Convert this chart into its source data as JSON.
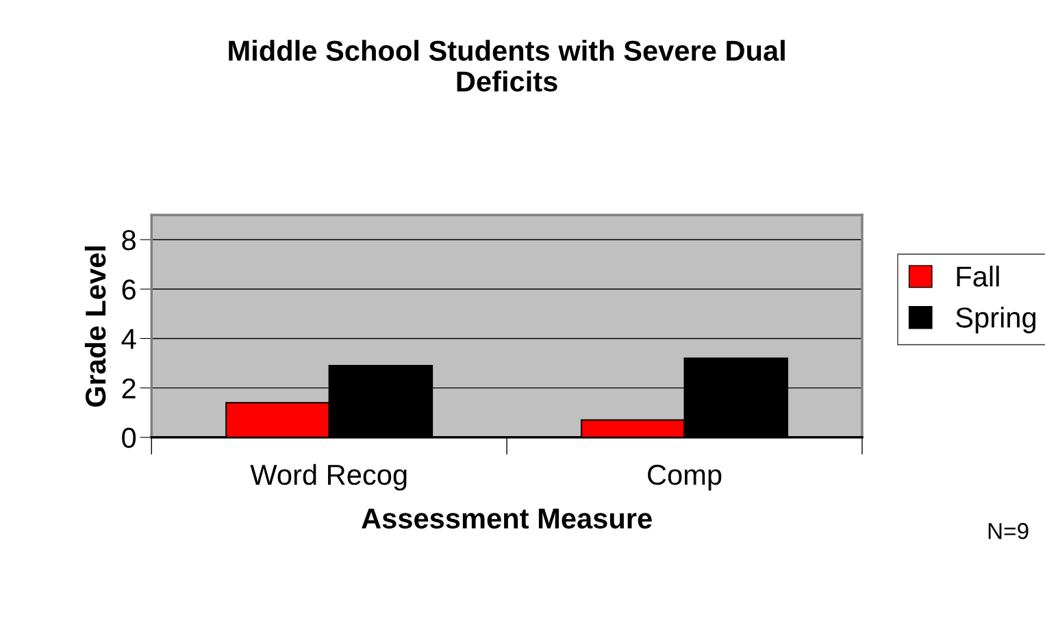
{
  "chart_data": {
    "type": "bar",
    "title": "Middle School Students with Severe Dual\nDeficits",
    "xlabel": "Assessment Measure",
    "ylabel": "Grade Level",
    "categories": [
      "Word Recog",
      "Comp"
    ],
    "series": [
      {
        "name": "Fall",
        "color": "#ff0000",
        "values": [
          1.4,
          0.7
        ]
      },
      {
        "name": "Spring",
        "color": "#000000",
        "values": [
          2.9,
          3.2
        ]
      }
    ],
    "ylim": [
      0,
      9
    ],
    "yticks": [
      0,
      2,
      4,
      6,
      8
    ],
    "grid": "y",
    "legend": "right",
    "annotations": [
      "N=9"
    ]
  }
}
